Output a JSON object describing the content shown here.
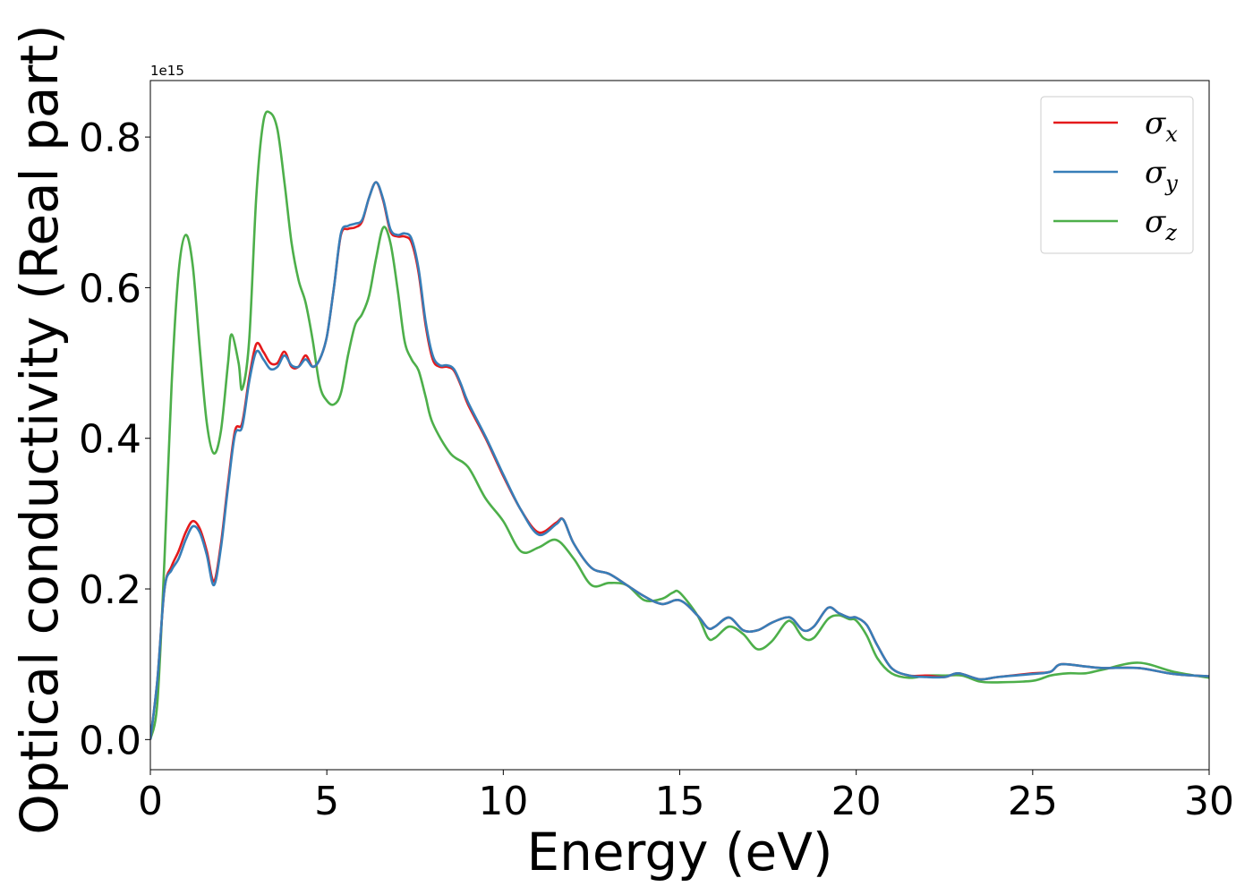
{
  "chart_data": {
    "type": "line",
    "xlabel": "Energy (eV)",
    "ylabel": "Optical conductivity (Real part)",
    "y_offset_text": "1e15",
    "xlim": [
      0,
      30
    ],
    "ylim": [
      -0.04,
      0.875
    ],
    "x_ticks": [
      0,
      5,
      10,
      15,
      20,
      25,
      30
    ],
    "y_ticks": [
      0.0,
      0.2,
      0.4,
      0.6,
      0.8
    ],
    "x_tick_labels": [
      "0",
      "5",
      "10",
      "15",
      "20",
      "25",
      "30"
    ],
    "y_tick_labels": [
      "0.0",
      "0.2",
      "0.4",
      "0.6",
      "0.8"
    ],
    "grid": false,
    "legend_position": "top-right",
    "series": [
      {
        "name": "σx",
        "symbol": "σ",
        "subscript": "x",
        "color": "#e41a1c",
        "x": [
          0,
          0.2,
          0.4,
          0.6,
          0.8,
          1.0,
          1.2,
          1.4,
          1.6,
          1.8,
          2.0,
          2.2,
          2.4,
          2.6,
          2.8,
          3.0,
          3.2,
          3.4,
          3.6,
          3.8,
          4.0,
          4.2,
          4.4,
          4.6,
          4.8,
          5.0,
          5.2,
          5.4,
          5.6,
          5.8,
          6.0,
          6.2,
          6.4,
          6.6,
          6.8,
          7.0,
          7.2,
          7.4,
          7.6,
          7.8,
          8.0,
          8.2,
          8.4,
          8.6,
          8.8,
          9.0,
          9.5,
          10.0,
          10.5,
          11.0,
          11.5,
          11.7,
          12.0,
          12.5,
          13.0,
          13.5,
          14.0,
          14.5,
          15.0,
          15.5,
          15.8,
          16.0,
          16.4,
          16.8,
          17.2,
          17.6,
          18.0,
          18.2,
          18.5,
          18.8,
          19.2,
          19.5,
          19.8,
          20.0,
          20.3,
          20.6,
          21.0,
          21.5,
          22.0,
          22.5,
          22.9,
          23.5,
          24.0,
          25.0,
          25.5,
          25.8,
          26.5,
          27.0,
          28.0,
          29.0,
          30.0
        ],
        "y": [
          0.0,
          0.08,
          0.2,
          0.23,
          0.25,
          0.275,
          0.29,
          0.28,
          0.25,
          0.21,
          0.26,
          0.34,
          0.41,
          0.42,
          0.48,
          0.525,
          0.515,
          0.5,
          0.5,
          0.515,
          0.495,
          0.495,
          0.51,
          0.495,
          0.505,
          0.535,
          0.6,
          0.67,
          0.678,
          0.68,
          0.688,
          0.72,
          0.74,
          0.715,
          0.675,
          0.668,
          0.668,
          0.66,
          0.62,
          0.55,
          0.505,
          0.495,
          0.495,
          0.49,
          0.47,
          0.445,
          0.4,
          0.35,
          0.305,
          0.275,
          0.288,
          0.292,
          0.26,
          0.228,
          0.22,
          0.205,
          0.19,
          0.18,
          0.185,
          0.165,
          0.148,
          0.15,
          0.162,
          0.145,
          0.145,
          0.155,
          0.162,
          0.16,
          0.145,
          0.15,
          0.175,
          0.168,
          0.162,
          0.162,
          0.152,
          0.125,
          0.095,
          0.085,
          0.085,
          0.083,
          0.088,
          0.08,
          0.083,
          0.088,
          0.09,
          0.1,
          0.097,
          0.095,
          0.095,
          0.087,
          0.084
        ]
      },
      {
        "name": "σy",
        "symbol": "σ",
        "subscript": "y",
        "color": "#377eb8",
        "x": [
          0,
          0.2,
          0.4,
          0.6,
          0.8,
          1.0,
          1.2,
          1.4,
          1.6,
          1.8,
          2.0,
          2.2,
          2.4,
          2.6,
          2.8,
          3.0,
          3.2,
          3.4,
          3.6,
          3.8,
          4.0,
          4.2,
          4.4,
          4.6,
          4.8,
          5.0,
          5.2,
          5.4,
          5.6,
          5.8,
          6.0,
          6.2,
          6.4,
          6.6,
          6.8,
          7.0,
          7.2,
          7.4,
          7.6,
          7.8,
          8.0,
          8.2,
          8.4,
          8.6,
          8.8,
          9.0,
          9.5,
          10.0,
          10.5,
          11.0,
          11.5,
          11.7,
          12.0,
          12.5,
          13.0,
          13.5,
          14.0,
          14.5,
          15.0,
          15.5,
          15.8,
          16.0,
          16.4,
          16.8,
          17.2,
          17.6,
          18.0,
          18.2,
          18.5,
          18.8,
          19.2,
          19.5,
          19.8,
          20.0,
          20.3,
          20.6,
          21.0,
          21.5,
          22.0,
          22.5,
          22.9,
          23.5,
          24.0,
          25.0,
          25.5,
          25.8,
          26.5,
          27.0,
          28.0,
          29.0,
          30.0
        ],
        "y": [
          0.0,
          0.08,
          0.2,
          0.225,
          0.24,
          0.265,
          0.283,
          0.275,
          0.245,
          0.205,
          0.255,
          0.335,
          0.405,
          0.415,
          0.475,
          0.515,
          0.505,
          0.492,
          0.495,
          0.51,
          0.497,
          0.495,
          0.505,
          0.495,
          0.505,
          0.535,
          0.6,
          0.672,
          0.682,
          0.685,
          0.69,
          0.72,
          0.74,
          0.717,
          0.678,
          0.67,
          0.672,
          0.665,
          0.625,
          0.555,
          0.51,
          0.497,
          0.497,
          0.492,
          0.472,
          0.448,
          0.402,
          0.352,
          0.305,
          0.272,
          0.286,
          0.292,
          0.26,
          0.228,
          0.22,
          0.205,
          0.19,
          0.18,
          0.185,
          0.165,
          0.148,
          0.15,
          0.162,
          0.145,
          0.145,
          0.155,
          0.162,
          0.16,
          0.145,
          0.15,
          0.175,
          0.168,
          0.162,
          0.162,
          0.152,
          0.125,
          0.095,
          0.085,
          0.083,
          0.083,
          0.088,
          0.08,
          0.083,
          0.087,
          0.09,
          0.1,
          0.097,
          0.095,
          0.095,
          0.087,
          0.084
        ]
      },
      {
        "name": "σz",
        "symbol": "σ",
        "subscript": "z",
        "color": "#4daf4a",
        "x": [
          0,
          0.2,
          0.4,
          0.6,
          0.8,
          1.0,
          1.2,
          1.4,
          1.6,
          1.8,
          2.0,
          2.2,
          2.3,
          2.5,
          2.6,
          2.8,
          3.0,
          3.2,
          3.4,
          3.6,
          3.8,
          4.0,
          4.2,
          4.4,
          4.6,
          4.8,
          5.0,
          5.2,
          5.4,
          5.6,
          5.8,
          6.0,
          6.2,
          6.4,
          6.6,
          6.8,
          7.0,
          7.2,
          7.4,
          7.6,
          7.8,
          8.0,
          8.5,
          9.0,
          9.5,
          10.0,
          10.5,
          11.0,
          11.5,
          12.0,
          12.5,
          13.0,
          13.5,
          14.0,
          14.5,
          14.8,
          15.0,
          15.5,
          15.8,
          16.0,
          16.4,
          16.8,
          17.2,
          17.6,
          18.0,
          18.2,
          18.5,
          18.8,
          19.2,
          19.5,
          19.8,
          20.0,
          20.3,
          20.6,
          21.0,
          21.5,
          22.0,
          22.5,
          23.0,
          23.5,
          24.0,
          25.0,
          25.5,
          26.0,
          26.5,
          27.0,
          28.0,
          29.0,
          30.0
        ],
        "y": [
          0.0,
          0.05,
          0.24,
          0.47,
          0.62,
          0.67,
          0.63,
          0.52,
          0.42,
          0.38,
          0.41,
          0.5,
          0.538,
          0.5,
          0.465,
          0.53,
          0.72,
          0.82,
          0.832,
          0.81,
          0.74,
          0.66,
          0.61,
          0.58,
          0.53,
          0.47,
          0.45,
          0.445,
          0.46,
          0.51,
          0.55,
          0.565,
          0.59,
          0.64,
          0.68,
          0.66,
          0.6,
          0.53,
          0.505,
          0.49,
          0.455,
          0.42,
          0.38,
          0.362,
          0.32,
          0.29,
          0.25,
          0.255,
          0.265,
          0.24,
          0.205,
          0.208,
          0.205,
          0.185,
          0.187,
          0.195,
          0.195,
          0.165,
          0.135,
          0.135,
          0.15,
          0.14,
          0.12,
          0.13,
          0.155,
          0.155,
          0.135,
          0.135,
          0.16,
          0.165,
          0.16,
          0.158,
          0.138,
          0.108,
          0.088,
          0.082,
          0.085,
          0.085,
          0.085,
          0.077,
          0.076,
          0.078,
          0.085,
          0.088,
          0.088,
          0.093,
          0.102,
          0.09,
          0.082
        ]
      }
    ]
  }
}
